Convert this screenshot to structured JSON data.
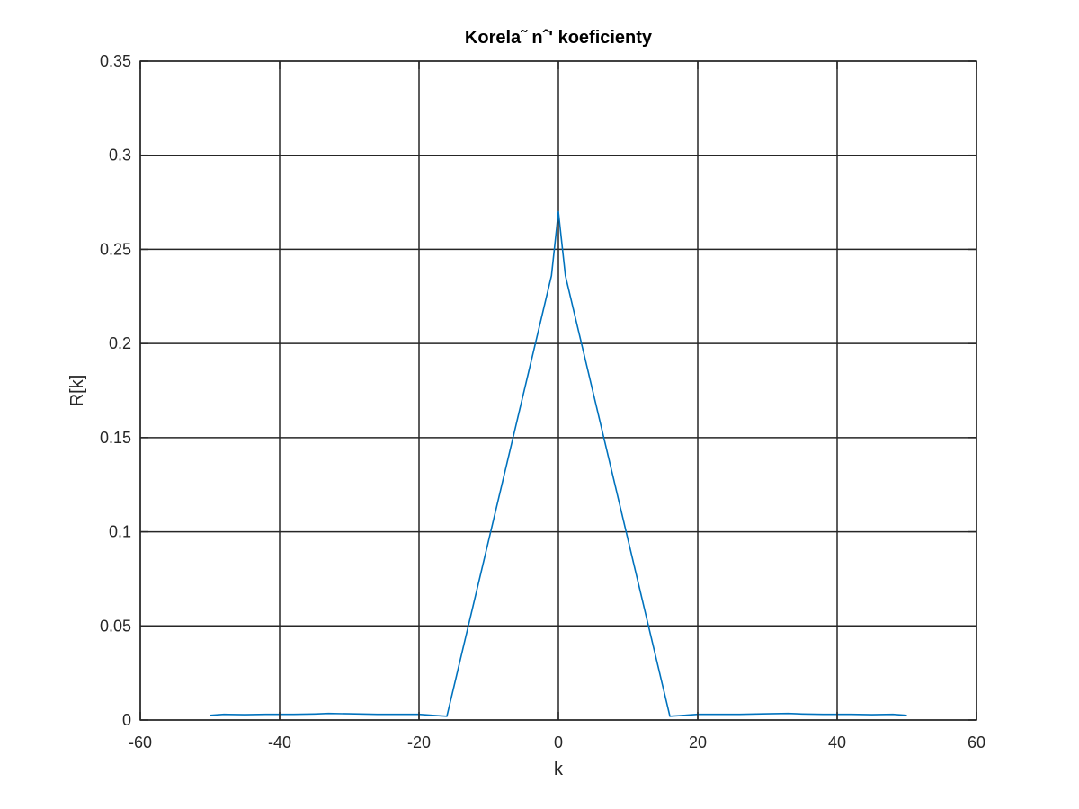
{
  "chart_data": {
    "type": "line",
    "title": "Korela˜ nˆ' koeficienty",
    "xlabel": "k",
    "ylabel": "R[k]",
    "xlim": [
      -60,
      60
    ],
    "ylim": [
      0,
      0.35
    ],
    "xticks": [
      -60,
      -40,
      -20,
      0,
      20,
      40,
      60
    ],
    "xtick_labels": [
      "-60",
      "-40",
      "-20",
      "0",
      "20",
      "40",
      "60"
    ],
    "yticks": [
      0,
      0.05,
      0.1,
      0.15,
      0.2,
      0.25,
      0.3,
      0.35
    ],
    "ytick_labels": [
      "0",
      "0.05",
      "0.1",
      "0.15",
      "0.2",
      "0.25",
      "0.3",
      "0.35"
    ],
    "grid": true,
    "series": [
      {
        "color": "#0072bd",
        "x": [
          -50,
          -48,
          -45,
          -42,
          -38,
          -35,
          -33,
          -30,
          -26,
          -22,
          -20,
          -18,
          -16,
          -1,
          0,
          1,
          16,
          18,
          20,
          22,
          26,
          30,
          33,
          35,
          38,
          42,
          45,
          48,
          50
        ],
        "y": [
          0.0025,
          0.003,
          0.0028,
          0.003,
          0.003,
          0.0032,
          0.0035,
          0.0033,
          0.003,
          0.003,
          0.003,
          0.0025,
          0.002,
          0.236,
          0.27,
          0.236,
          0.002,
          0.0025,
          0.003,
          0.003,
          0.003,
          0.0033,
          0.0035,
          0.0032,
          0.003,
          0.003,
          0.0028,
          0.003,
          0.0025
        ]
      }
    ]
  }
}
